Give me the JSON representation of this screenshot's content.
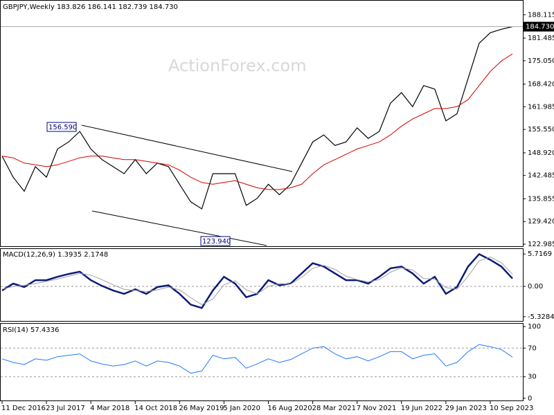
{
  "chart_data": [
    {
      "type": "line",
      "title": "GBPJPY,Weekly  183.826 186.141 182.739 184.730",
      "watermark": "ActionForex.com",
      "annotations": [
        "156.590",
        "123.940",
        "184.730"
      ],
      "categories": [
        "11 Dec 2016",
        null,
        null,
        null,
        "23 Jul 2017",
        null,
        null,
        null,
        "4 Mar 2018",
        null,
        null,
        null,
        "14 Oct 2018",
        null,
        null,
        null,
        "26 May 2019",
        null,
        null,
        null,
        "5 Jan 2020",
        null,
        null,
        null,
        "16 Aug 2020",
        null,
        null,
        null,
        "28 Mar 2021",
        null,
        null,
        null,
        "7 Nov 2021",
        null,
        null,
        null,
        "19 Jun 2022",
        null,
        null,
        null,
        "29 Jan 2023",
        null,
        null,
        null,
        "10 Sep 2023",
        null,
        null
      ],
      "series": [
        {
          "color": "#000000",
          "values": [
            148,
            142,
            138,
            145,
            142,
            150,
            152,
            155,
            150,
            147,
            145,
            143,
            147,
            143,
            146,
            145,
            140,
            135,
            133,
            143,
            143,
            143,
            134,
            136,
            140,
            137,
            140,
            146,
            152,
            154,
            151,
            152,
            156,
            153,
            155,
            163,
            166,
            162,
            168,
            167,
            158,
            160,
            170,
            180,
            183,
            184,
            184.73
          ]
        },
        {
          "color": "#d00000",
          "values": [
            148,
            147.5,
            146,
            145.5,
            145,
            145.5,
            146.5,
            147.5,
            148,
            148,
            147.5,
            147,
            147,
            146.5,
            146,
            145.5,
            144,
            142,
            140.5,
            140,
            140.5,
            141,
            140,
            139,
            138.5,
            138.5,
            139,
            140,
            143,
            145.5,
            147,
            148.5,
            150,
            151,
            152,
            154,
            156.5,
            158.5,
            160,
            161.5,
            161.5,
            162,
            164,
            168,
            172,
            175,
            177
          ]
        }
      ],
      "ylim": [
        122.4,
        192.1
      ],
      "yticks": [
        188.115,
        181.485,
        {
          "value": 175.05,
          "label": "175.050"
        },
        {
          "value": 168.42,
          "label": "168.420"
        },
        161.985,
        {
          "value": 155.55,
          "label": "155.550"
        },
        {
          "value": 148.92,
          "label": "148.920"
        },
        142.485,
        135.855,
        {
          "value": 129.42,
          "label": "129.420"
        },
        122.985
      ]
    },
    {
      "type": "line",
      "title": "MACD(12,26,9) 1.3935 2.1748",
      "series": [
        {
          "color": "#0a1a7a",
          "values": [
            -0.7,
            0.5,
            -0.1,
            1.1,
            1.1,
            1.7,
            2.2,
            2.6,
            1.1,
            0.1,
            -0.7,
            -1.3,
            -0.5,
            -1.3,
            -0.1,
            0.2,
            -1.3,
            -3.2,
            -3.8,
            -0.7,
            1.7,
            0.5,
            -1.9,
            -1.3,
            1.1,
            0.2,
            0.5,
            2.3,
            4.1,
            3.5,
            2.3,
            1.1,
            1.1,
            0.5,
            1.7,
            3.2,
            3.5,
            2.3,
            0.5,
            1.7,
            -1.3,
            -0.1,
            3.5,
            5.7,
            4.7,
            3.5,
            1.3935
          ]
        },
        {
          "color": "#a0a0a0",
          "values": [
            -0.5,
            0,
            0.2,
            0.5,
            0.9,
            1.3,
            1.8,
            2.3,
            2.0,
            1.2,
            0.3,
            -0.5,
            -0.7,
            -0.9,
            -0.6,
            -0.1,
            -0.6,
            -2.0,
            -3.2,
            -2.2,
            0.3,
            1.0,
            -0.6,
            -1.3,
            0.0,
            0.5,
            0.4,
            1.6,
            3.2,
            3.7,
            3.0,
            1.8,
            1.2,
            0.8,
            1.2,
            2.5,
            3.3,
            2.9,
            1.4,
            1.3,
            -0.2,
            -0.5,
            1.8,
            4.5,
            5.2,
            4.2,
            2.1748
          ]
        }
      ],
      "ylim": [
        -6.2,
        6.6
      ],
      "yticks": [
        5.7169,
        {
          "value": 0,
          "label": "0.00"
        },
        -5.3284
      ],
      "levels": [
        0
      ]
    },
    {
      "type": "line",
      "title": "RSI(14) 57.4336",
      "series": [
        {
          "color": "#1e78ff",
          "values": [
            55,
            50,
            47,
            55,
            53,
            58,
            60,
            62,
            52,
            48,
            45,
            47,
            52,
            45,
            52,
            50,
            45,
            35,
            38,
            60,
            55,
            57,
            42,
            48,
            55,
            50,
            54,
            62,
            70,
            72,
            62,
            55,
            58,
            52,
            58,
            65,
            65,
            55,
            60,
            62,
            45,
            50,
            65,
            75,
            72,
            68,
            57.4336
          ]
        }
      ],
      "ylim": [
        -4,
        104
      ],
      "yticks": [
        100,
        70,
        30,
        0
      ],
      "levels": [
        70,
        30
      ]
    }
  ]
}
